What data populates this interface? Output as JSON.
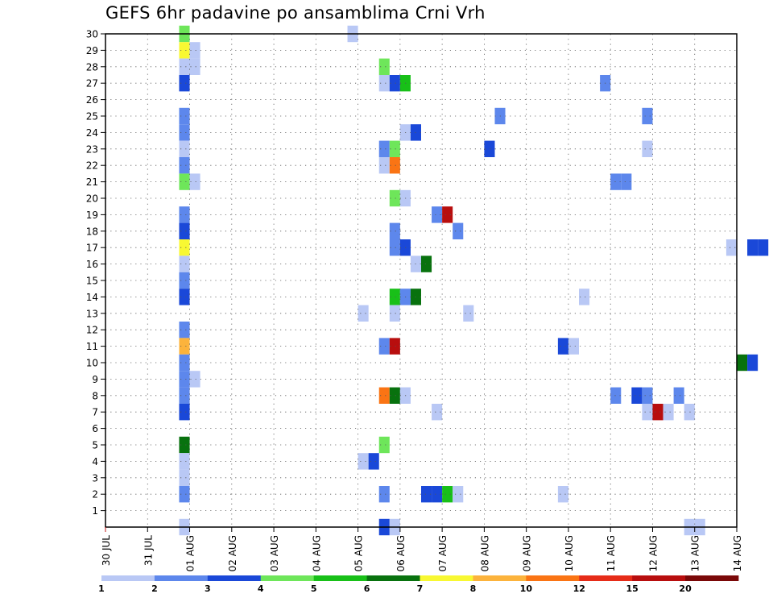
{
  "chart_data": {
    "type": "heatmap",
    "title": "GEFS 6hr padavine po ansamblima Crni Vrh",
    "xlabel": "",
    "ylabel": "",
    "x_tick_labels": [
      "30 JUL",
      "31 JUL",
      "01 AUG",
      "02 AUG",
      "03 AUG",
      "04 AUG",
      "05 AUG",
      "06 AUG",
      "07 AUG",
      "08 AUG",
      "09 AUG",
      "10 AUG",
      "11 AUG",
      "12 AUG",
      "13 AUG",
      "14 AUG"
    ],
    "y_ticks": [
      1,
      2,
      3,
      4,
      5,
      6,
      7,
      8,
      9,
      10,
      11,
      12,
      13,
      14,
      15,
      16,
      17,
      18,
      19,
      20,
      21,
      22,
      23,
      24,
      25,
      26,
      27,
      28,
      29,
      30
    ],
    "x_range_days": [
      0,
      15
    ],
    "y_range": [
      0,
      30
    ],
    "time_step_hours": 6,
    "grid": true,
    "colorbar": {
      "thresholds": [
        "1",
        "2",
        "3",
        "4",
        "5",
        "6",
        "7",
        "8",
        "10",
        "12",
        "15",
        "20"
      ],
      "colors": [
        "#b9c8f5",
        "#5d87ec",
        "#1a48d8",
        "#6ee65a",
        "#18c018",
        "#08720e",
        "#f8f832",
        "#fcb33c",
        "#fa7414",
        "#e62c18",
        "#b80e0e",
        "#7a0808"
      ]
    },
    "cells": [
      {
        "member": 30,
        "day": 1.75,
        "cls": 4
      },
      {
        "member": 30,
        "day": 5.75,
        "cls": 1
      },
      {
        "member": 29,
        "day": 1.75,
        "cls": 7
      },
      {
        "member": 29,
        "day": 2.0,
        "cls": 1
      },
      {
        "member": 28,
        "day": 1.75,
        "cls": 1
      },
      {
        "member": 28,
        "day": 2.0,
        "cls": 1
      },
      {
        "member": 28,
        "day": 6.5,
        "cls": 4
      },
      {
        "member": 27,
        "day": 1.75,
        "cls": 3
      },
      {
        "member": 27,
        "day": 6.5,
        "cls": 1
      },
      {
        "member": 27,
        "day": 6.75,
        "cls": 3
      },
      {
        "member": 27,
        "day": 7.0,
        "cls": 5
      },
      {
        "member": 27,
        "day": 11.75,
        "cls": 2
      },
      {
        "member": 25,
        "day": 1.75,
        "cls": 2
      },
      {
        "member": 25,
        "day": 9.25,
        "cls": 2
      },
      {
        "member": 25,
        "day": 12.75,
        "cls": 2
      },
      {
        "member": 24,
        "day": 1.75,
        "cls": 2
      },
      {
        "member": 24,
        "day": 7.0,
        "cls": 1
      },
      {
        "member": 24,
        "day": 7.25,
        "cls": 3
      },
      {
        "member": 23,
        "day": 1.75,
        "cls": 1
      },
      {
        "member": 23,
        "day": 6.5,
        "cls": 2
      },
      {
        "member": 23,
        "day": 6.75,
        "cls": 4
      },
      {
        "member": 23,
        "day": 9.0,
        "cls": 3
      },
      {
        "member": 23,
        "day": 12.75,
        "cls": 1
      },
      {
        "member": 22,
        "day": 1.75,
        "cls": 2
      },
      {
        "member": 22,
        "day": 6.5,
        "cls": 1
      },
      {
        "member": 22,
        "day": 6.75,
        "cls": 9
      },
      {
        "member": 21,
        "day": 1.75,
        "cls": 4
      },
      {
        "member": 21,
        "day": 2.0,
        "cls": 1
      },
      {
        "member": 21,
        "day": 12.0,
        "cls": 2
      },
      {
        "member": 21,
        "day": 12.25,
        "cls": 2
      },
      {
        "member": 20,
        "day": 6.75,
        "cls": 4
      },
      {
        "member": 20,
        "day": 7.0,
        "cls": 1
      },
      {
        "member": 19,
        "day": 1.75,
        "cls": 2
      },
      {
        "member": 19,
        "day": 7.75,
        "cls": 2
      },
      {
        "member": 19,
        "day": 8.0,
        "cls": 11
      },
      {
        "member": 18,
        "day": 1.75,
        "cls": 3
      },
      {
        "member": 18,
        "day": 6.75,
        "cls": 2
      },
      {
        "member": 18,
        "day": 8.25,
        "cls": 2
      },
      {
        "member": 17,
        "day": 1.75,
        "cls": 7
      },
      {
        "member": 17,
        "day": 6.75,
        "cls": 2
      },
      {
        "member": 17,
        "day": 7.0,
        "cls": 3
      },
      {
        "member": 17,
        "day": 14.75,
        "cls": 1
      },
      {
        "member": 17,
        "day": 15.25,
        "cls": 3
      },
      {
        "member": 17,
        "day": 15.5,
        "cls": 3
      },
      {
        "member": 16,
        "day": 1.75,
        "cls": 1
      },
      {
        "member": 16,
        "day": 7.25,
        "cls": 1
      },
      {
        "member": 16,
        "day": 7.5,
        "cls": 6
      },
      {
        "member": 15,
        "day": 1.75,
        "cls": 2
      },
      {
        "member": 14,
        "day": 1.75,
        "cls": 3
      },
      {
        "member": 14,
        "day": 6.75,
        "cls": 5
      },
      {
        "member": 14,
        "day": 7.0,
        "cls": 2
      },
      {
        "member": 14,
        "day": 7.25,
        "cls": 6
      },
      {
        "member": 14,
        "day": 11.25,
        "cls": 1
      },
      {
        "member": 13,
        "day": 6.0,
        "cls": 1
      },
      {
        "member": 13,
        "day": 6.75,
        "cls": 1
      },
      {
        "member": 13,
        "day": 8.5,
        "cls": 1
      },
      {
        "member": 12,
        "day": 1.75,
        "cls": 2
      },
      {
        "member": 11,
        "day": 1.75,
        "cls": 8
      },
      {
        "member": 11,
        "day": 6.5,
        "cls": 2
      },
      {
        "member": 11,
        "day": 6.75,
        "cls": 11
      },
      {
        "member": 11,
        "day": 10.75,
        "cls": 3
      },
      {
        "member": 11,
        "day": 11.0,
        "cls": 1
      },
      {
        "member": 10,
        "day": 1.75,
        "cls": 2
      },
      {
        "member": 10,
        "day": 15.0,
        "cls": 6
      },
      {
        "member": 10,
        "day": 15.25,
        "cls": 3
      },
      {
        "member": 9,
        "day": 1.75,
        "cls": 2
      },
      {
        "member": 9,
        "day": 2.0,
        "cls": 1
      },
      {
        "member": 8,
        "day": 1.75,
        "cls": 2
      },
      {
        "member": 8,
        "day": 6.5,
        "cls": 9
      },
      {
        "member": 8,
        "day": 6.75,
        "cls": 6
      },
      {
        "member": 8,
        "day": 7.0,
        "cls": 1
      },
      {
        "member": 8,
        "day": 12.0,
        "cls": 2
      },
      {
        "member": 8,
        "day": 12.5,
        "cls": 3
      },
      {
        "member": 8,
        "day": 12.75,
        "cls": 2
      },
      {
        "member": 8,
        "day": 13.5,
        "cls": 2
      },
      {
        "member": 7,
        "day": 1.75,
        "cls": 3
      },
      {
        "member": 7,
        "day": 7.75,
        "cls": 1
      },
      {
        "member": 7,
        "day": 12.75,
        "cls": 1
      },
      {
        "member": 7,
        "day": 13.0,
        "cls": 11
      },
      {
        "member": 7,
        "day": 13.25,
        "cls": 1
      },
      {
        "member": 7,
        "day": 13.75,
        "cls": 1
      },
      {
        "member": 5,
        "day": 1.75,
        "cls": 6
      },
      {
        "member": 5,
        "day": 6.5,
        "cls": 4
      },
      {
        "member": 4,
        "day": 1.75,
        "cls": 1
      },
      {
        "member": 4,
        "day": 6.0,
        "cls": 1
      },
      {
        "member": 4,
        "day": 6.25,
        "cls": 3
      },
      {
        "member": 3,
        "day": 1.75,
        "cls": 1
      },
      {
        "member": 2,
        "day": 1.75,
        "cls": 2
      },
      {
        "member": 2,
        "day": 6.5,
        "cls": 2
      },
      {
        "member": 2,
        "day": 7.5,
        "cls": 3
      },
      {
        "member": 2,
        "day": 7.75,
        "cls": 3
      },
      {
        "member": 2,
        "day": 8.0,
        "cls": 5
      },
      {
        "member": 2,
        "day": 8.25,
        "cls": 1
      },
      {
        "member": 2,
        "day": 10.75,
        "cls": 1
      },
      {
        "member": 0,
        "day": 1.75,
        "cls": 1
      },
      {
        "member": 0,
        "day": 6.5,
        "cls": 3
      },
      {
        "member": 0,
        "day": 6.75,
        "cls": 1
      },
      {
        "member": 0,
        "day": 13.75,
        "cls": 1
      },
      {
        "member": 0,
        "day": 14.0,
        "cls": 1
      }
    ]
  }
}
